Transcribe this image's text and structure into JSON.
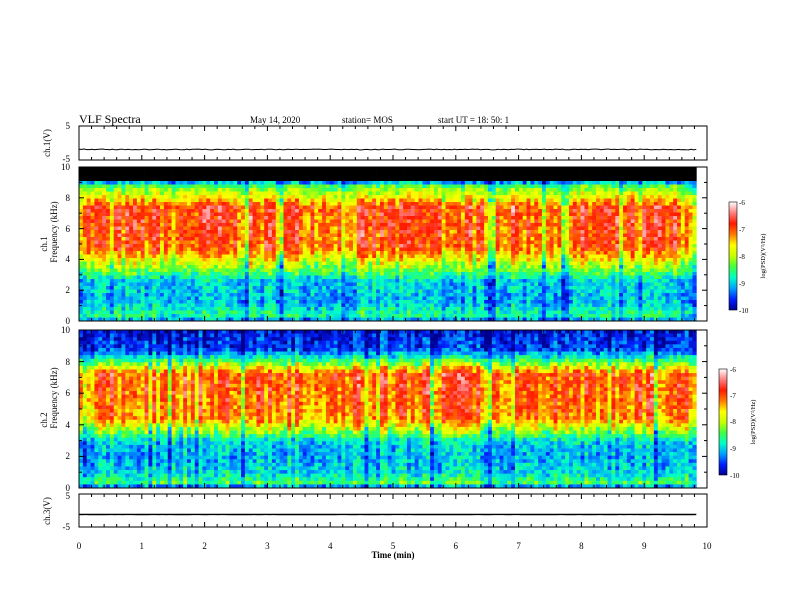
{
  "header": {
    "title": "VLF Spectra",
    "date": "May 14, 2020",
    "station": "station= MOS",
    "start": "start  UT =   18: 50: 1"
  },
  "colors": {
    "scale": [
      "#00008f",
      "#0020ff",
      "#00a0ff",
      "#00ffc8",
      "#40ff40",
      "#c8ff00",
      "#ffff00",
      "#ff7a00",
      "#ff1a00",
      "#ff8080",
      "#ffffff"
    ],
    "trace": "#000000",
    "sat_band": "#000000"
  },
  "chart_data": [
    {
      "id": "ch1-voltage",
      "type": "line",
      "ylabel": "ch.1(V)",
      "yticks": [
        "5",
        "-5"
      ],
      "ylim": [
        -5,
        5
      ],
      "x_range": [
        0,
        9.83
      ],
      "level": -1.9
    },
    {
      "id": "ch1-spectrogram",
      "type": "heatmap",
      "ylabel": [
        "ch.1",
        "Frequency  (kHz)"
      ],
      "yticks": [
        "0",
        "2",
        "4",
        "6",
        "8",
        "10"
      ],
      "ylim": [
        0,
        10
      ],
      "x_range": [
        0,
        9.83
      ],
      "saturated_above_khz": 9.0,
      "profile": [
        {
          "f": 0.0,
          "v": -9.3
        },
        {
          "f": 0.4,
          "v": -8.6
        },
        {
          "f": 1.2,
          "v": -9.1
        },
        {
          "f": 2.6,
          "v": -9.0
        },
        {
          "f": 3.1,
          "v": -8.5
        },
        {
          "f": 4.0,
          "v": -7.7
        },
        {
          "f": 4.8,
          "v": -7.0
        },
        {
          "f": 7.4,
          "v": -6.9
        },
        {
          "f": 7.9,
          "v": -7.6
        },
        {
          "f": 8.4,
          "v": -8.0
        },
        {
          "f": 8.8,
          "v": -8.5
        },
        {
          "f": 9.0,
          "v": -9.2
        },
        {
          "f": 10.0,
          "v": -10.0
        }
      ],
      "colorbar": {
        "label": "log(PSD)(V²/Hz)",
        "ticks": [
          "-6",
          "-7",
          "-8",
          "-9",
          "-10"
        ],
        "range": [
          -10,
          -6
        ]
      }
    },
    {
      "id": "ch2-spectrogram",
      "type": "heatmap",
      "ylabel": [
        "ch.2",
        "Frequency  (kHz)"
      ],
      "yticks": [
        "0",
        "2",
        "4",
        "6",
        "8",
        "10"
      ],
      "ylim": [
        0,
        10
      ],
      "x_range": [
        0,
        9.83
      ],
      "saturated_above_khz": null,
      "profile": [
        {
          "f": 0.0,
          "v": -9.6
        },
        {
          "f": 0.3,
          "v": -8.4
        },
        {
          "f": 0.9,
          "v": -8.9
        },
        {
          "f": 2.0,
          "v": -9.1
        },
        {
          "f": 3.0,
          "v": -8.9
        },
        {
          "f": 3.6,
          "v": -8.1
        },
        {
          "f": 4.4,
          "v": -7.1
        },
        {
          "f": 7.2,
          "v": -6.9
        },
        {
          "f": 7.7,
          "v": -7.8
        },
        {
          "f": 8.2,
          "v": -8.7
        },
        {
          "f": 8.8,
          "v": -9.5
        },
        {
          "f": 10.0,
          "v": -9.7
        }
      ],
      "colorbar": {
        "label": "log(PSD)(V²/Hz)",
        "ticks": [
          "-6",
          "-7",
          "-8",
          "-9",
          "-10"
        ],
        "range": [
          -10,
          -6
        ]
      }
    },
    {
      "id": "ch3-voltage",
      "type": "line",
      "ylabel": "ch.3(V)",
      "yticks": [
        "5",
        "-5"
      ],
      "ylim": [
        -5,
        5
      ],
      "x_range": [
        0,
        9.83
      ],
      "level": -1.2
    }
  ],
  "x_axis": {
    "label": "Time  (min)",
    "ticks": [
      "0",
      "1",
      "2",
      "3",
      "4",
      "5",
      "6",
      "7",
      "8",
      "9",
      "10"
    ],
    "xlim": [
      0,
      10
    ]
  }
}
